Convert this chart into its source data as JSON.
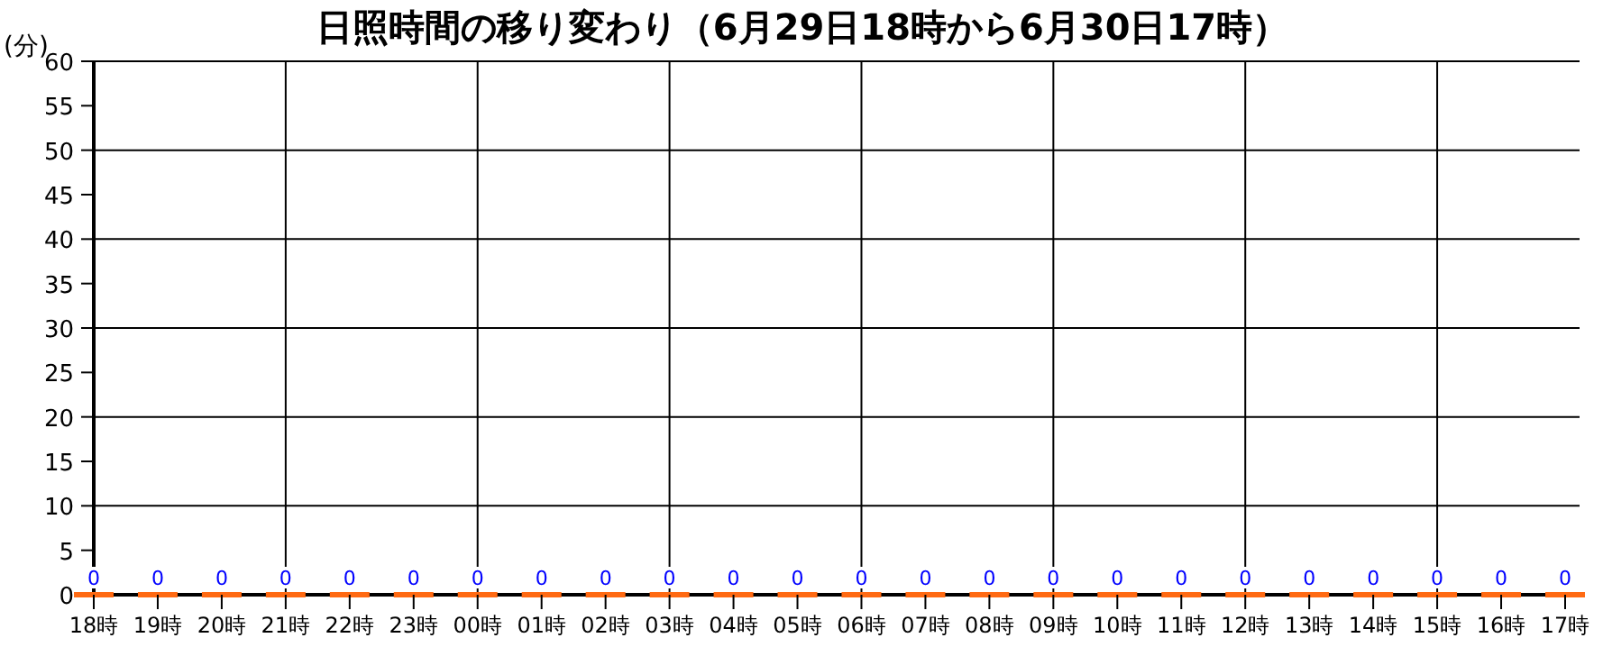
{
  "chart_data": {
    "type": "bar",
    "title": "日照時間の移り変わり（6月29日18時から6月30日17時）",
    "ylabel": "(分)",
    "categories": [
      "18時",
      "19時",
      "20時",
      "21時",
      "22時",
      "23時",
      "00時",
      "01時",
      "02時",
      "03時",
      "04時",
      "05時",
      "06時",
      "07時",
      "08時",
      "09時",
      "10時",
      "11時",
      "12時",
      "13時",
      "14時",
      "15時",
      "16時",
      "17時"
    ],
    "values": [
      0,
      0,
      0,
      0,
      0,
      0,
      0,
      0,
      0,
      0,
      0,
      0,
      0,
      0,
      0,
      0,
      0,
      0,
      0,
      0,
      0,
      0,
      0,
      0
    ],
    "color": "#ff6a13",
    "data_labels": true,
    "grid": true,
    "ylim": [
      0,
      60
    ],
    "yticks": [
      0,
      5,
      10,
      15,
      20,
      25,
      30,
      35,
      40,
      45,
      50,
      55,
      60
    ],
    "legend": false
  }
}
